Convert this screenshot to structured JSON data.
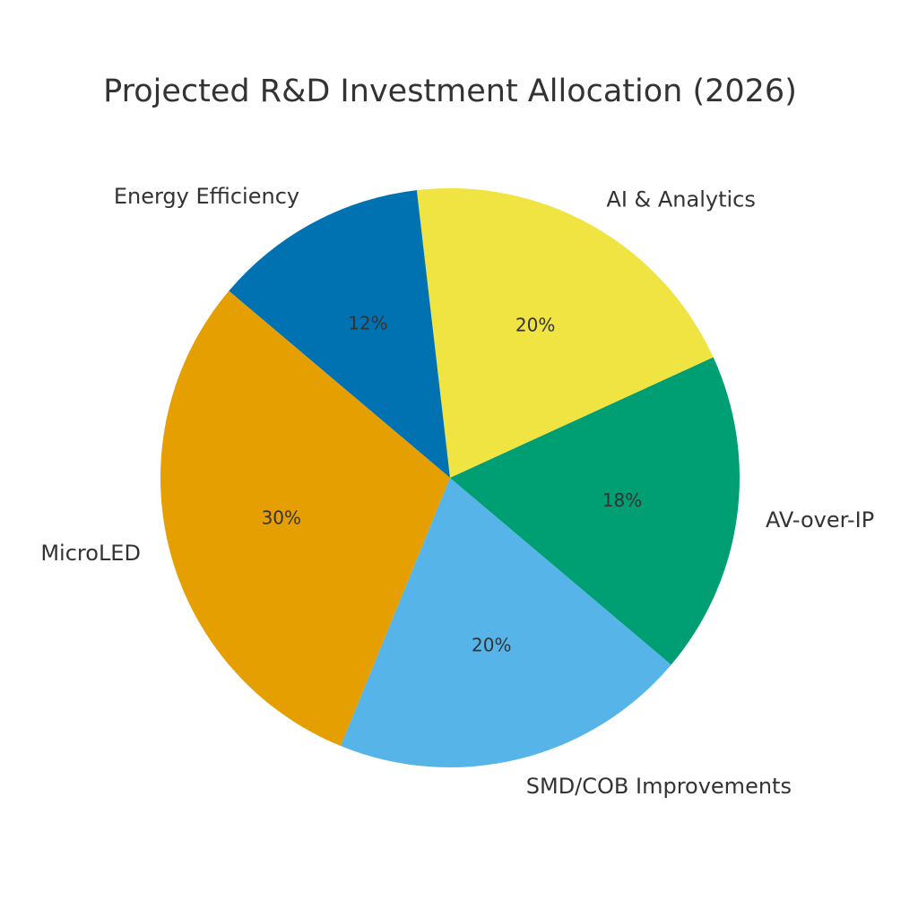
{
  "chart_data": {
    "type": "pie",
    "title": "Projected R&D Investment Allocation (2026)",
    "categories": [
      "AI & Analytics",
      "Energy Efficiency",
      "MicroLED",
      "SMD/COB Improvements",
      "AV-over-IP"
    ],
    "values": [
      20,
      12,
      30,
      20,
      18
    ],
    "value_labels": [
      "20%",
      "12%",
      "30%",
      "20%",
      "18%"
    ],
    "colors": [
      "#F0E442",
      "#0072B2",
      "#E69F00",
      "#56B4E9",
      "#009E73"
    ],
    "start_angle": 24.6,
    "direction": "counterclockwise",
    "legend": "none"
  }
}
